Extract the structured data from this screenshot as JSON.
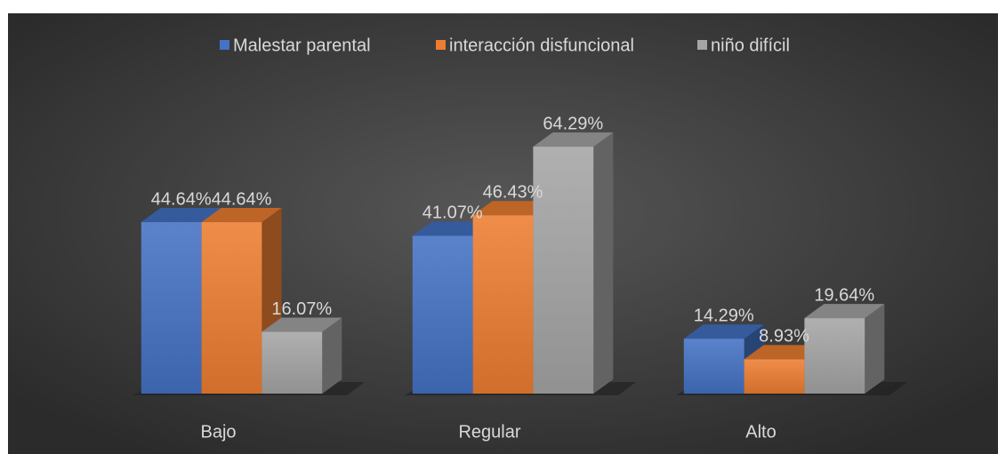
{
  "chart_data": {
    "type": "bar3d",
    "categories": [
      "Bajo",
      "Regular",
      "Alto"
    ],
    "series": [
      {
        "name": "Malestar parental",
        "color": "#4472c4",
        "values": [
          44.64,
          41.07,
          14.29
        ],
        "value_labels": [
          "44.64%",
          "41.07%",
          "14.29%"
        ]
      },
      {
        "name": "interacción disfuncional",
        "color": "#ed7d31",
        "values": [
          44.64,
          46.43,
          8.93
        ],
        "value_labels": [
          "44.64%",
          "46.43%",
          "8.93%"
        ]
      },
      {
        "name": "niño difícil",
        "color": "#a5a5a5",
        "values": [
          16.07,
          64.29,
          19.64
        ],
        "value_labels": [
          "16.07%",
          "64.29%",
          "19.64%"
        ]
      }
    ],
    "ylim": [
      0,
      70
    ],
    "legend": "top"
  }
}
